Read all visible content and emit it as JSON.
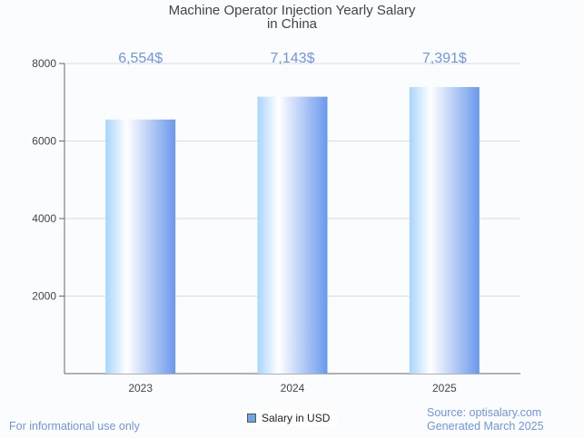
{
  "chart_data": {
    "type": "bar",
    "title_line1": "Machine Operator Injection Yearly Salary",
    "title_line2": "in China",
    "categories": [
      "2023",
      "2024",
      "2025"
    ],
    "values": [
      6554,
      7143,
      7391
    ],
    "data_labels": [
      "6,554$",
      "7,143$",
      "7,391$"
    ],
    "yticks": [
      2000,
      4000,
      6000,
      8000
    ],
    "ylim": [
      0,
      8000
    ],
    "grid": true,
    "legend": {
      "label": "Salary in USD",
      "placement": "bottom-center",
      "color": "#6aa7e8"
    },
    "label_color": "#6f95e6"
  },
  "footer": {
    "left": "For informational use only",
    "source": "Source: optisalary.com",
    "generated": "Generated March 2025"
  }
}
